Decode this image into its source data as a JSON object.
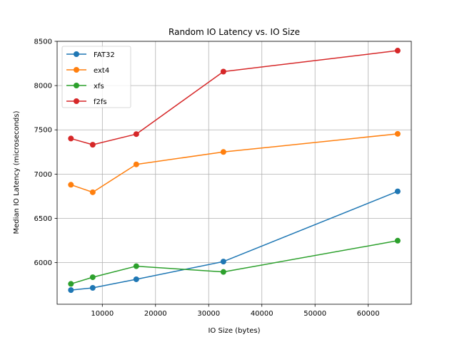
{
  "chart_data": {
    "type": "line",
    "title": "Random IO Latency vs. IO Size",
    "xlabel": "IO Size (bytes)",
    "ylabel": "Median IO Latency (microseconds)",
    "x": [
      4096,
      8192,
      16384,
      32768,
      65536
    ],
    "xlim": [
      1500,
      68100
    ],
    "ylim": [
      5530,
      8500
    ],
    "xticks": [
      10000,
      20000,
      30000,
      40000,
      50000,
      60000
    ],
    "xtick_labels": [
      "10000",
      "20000",
      "30000",
      "40000",
      "50000",
      "60000"
    ],
    "yticks": [
      6000,
      6500,
      7000,
      7500,
      8000,
      8500
    ],
    "ytick_labels": [
      "6000",
      "6500",
      "7000",
      "7500",
      "8000",
      "8500"
    ],
    "grid": true,
    "legend_position": "top-left",
    "series": [
      {
        "name": "FAT32",
        "color": "#1f77b4",
        "values": [
          5690,
          5715,
          5812,
          6012,
          6805
        ]
      },
      {
        "name": "ext4",
        "color": "#ff7f0e",
        "values": [
          6880,
          6795,
          7110,
          7250,
          7455
        ]
      },
      {
        "name": "xfs",
        "color": "#2ca02c",
        "values": [
          5760,
          5835,
          5960,
          5895,
          6248
        ]
      },
      {
        "name": "f2fs",
        "color": "#d62728",
        "values": [
          7402,
          7332,
          7452,
          8158,
          8395
        ]
      }
    ]
  }
}
